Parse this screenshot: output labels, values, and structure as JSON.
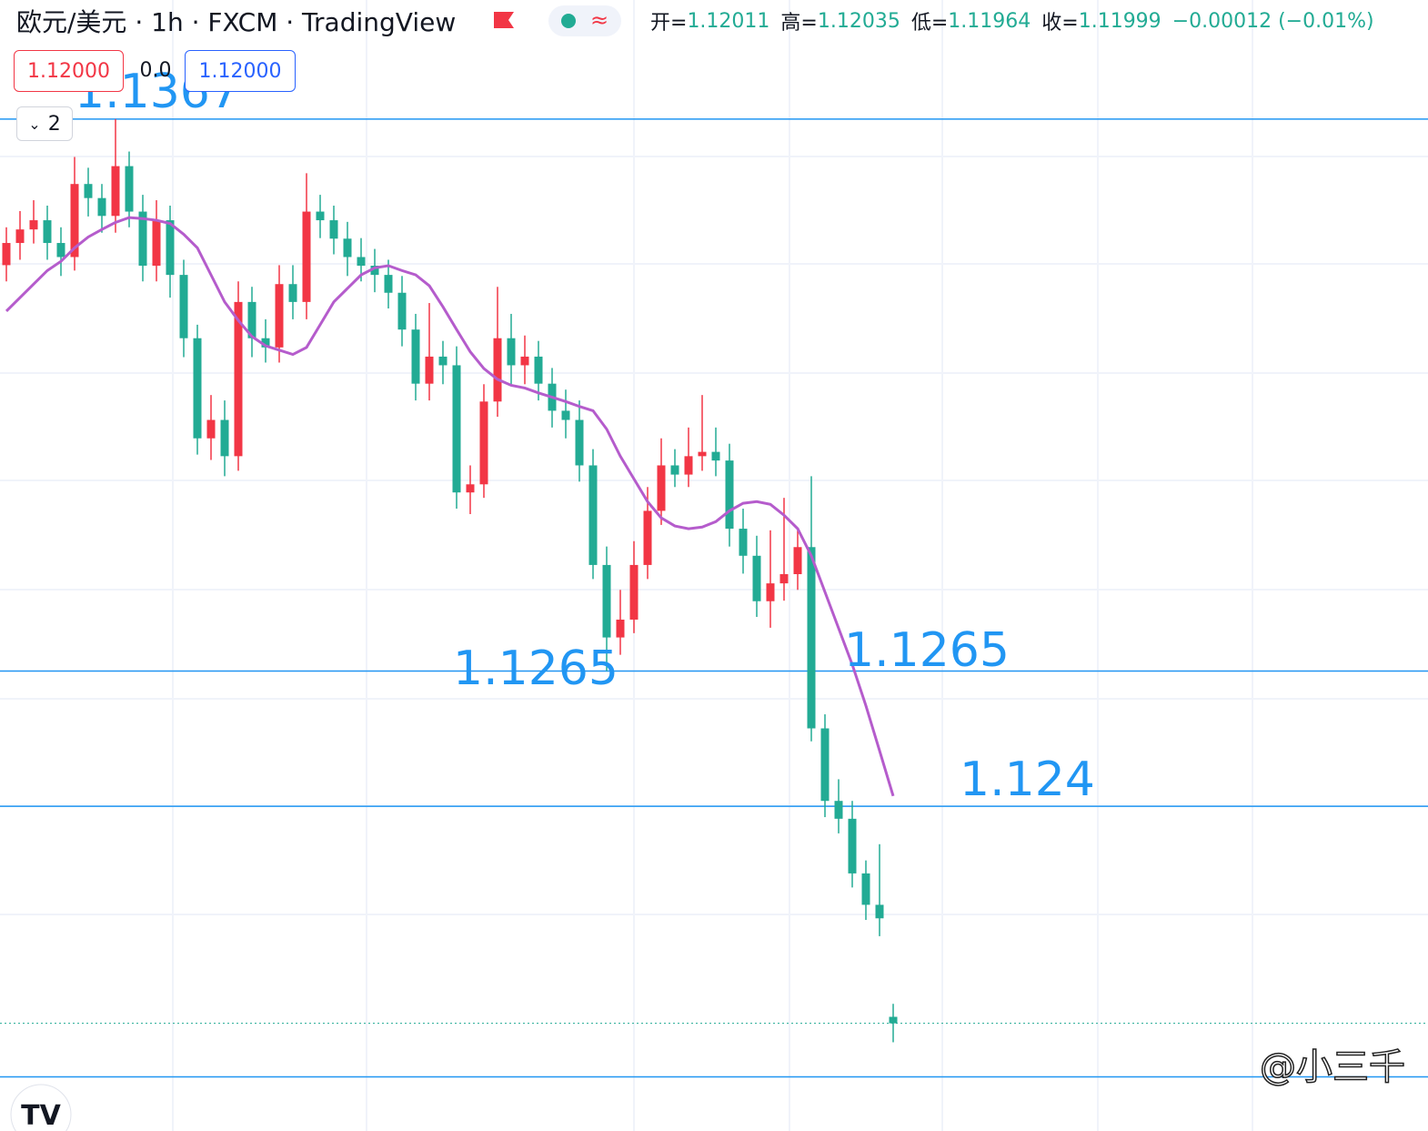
{
  "header": {
    "title": "欧元/美元 · 1h · FXCM · TradingView",
    "ohlc": [
      {
        "label": "开=",
        "value": 1.12011
      },
      {
        "label": "高=",
        "value": 1.12035
      },
      {
        "label": "低=",
        "value": 1.11964
      },
      {
        "label": "收=",
        "value": 1.11999
      }
    ],
    "change": "−0.00012 (−0.01%)"
  },
  "toolbar": {
    "sell_price": "1.12000",
    "spread": "0.0",
    "buy_price": "1.12000",
    "count": "2"
  },
  "watermark": "@小三千",
  "chart_data": {
    "type": "candlestick",
    "up_color": "#f23645",
    "down_color": "#22ab94",
    "ylim": [
      1.118,
      1.1389
    ],
    "open": [
      1.134,
      1.13441,
      1.13466,
      1.13483,
      1.13441,
      1.13415,
      1.1355,
      1.13524,
      1.13491,
      1.13583,
      1.13499,
      1.13399,
      1.13483,
      1.13382,
      1.13265,
      1.1308,
      1.13114,
      1.13047,
      1.13332,
      1.13265,
      1.13248,
      1.13365,
      1.13332,
      1.13499,
      1.13483,
      1.13449,
      1.13415,
      1.13399,
      1.13382,
      1.13349,
      1.13281,
      1.13181,
      1.13231,
      1.13215,
      1.1298,
      1.12995,
      1.13148,
      1.13265,
      1.13215,
      1.13231,
      1.13181,
      1.13131,
      1.13114,
      1.1303,
      1.12846,
      1.12712,
      1.12745,
      1.12846,
      1.12946,
      1.1303,
      1.13013,
      1.13047,
      1.13055,
      1.13039,
      1.12913,
      1.12863,
      1.12779,
      1.12812,
      1.12829,
      1.12879,
      1.12544,
      1.1241,
      1.12377,
      1.12276,
      1.12218,
      1.12011
    ],
    "high": [
      1.1347,
      1.135,
      1.1352,
      1.1351,
      1.1347,
      1.136,
      1.1358,
      1.1355,
      1.1367,
      1.1361,
      1.1353,
      1.1352,
      1.1351,
      1.1341,
      1.1329,
      1.1316,
      1.1315,
      1.1337,
      1.1336,
      1.133,
      1.134,
      1.134,
      1.1357,
      1.1353,
      1.1351,
      1.1348,
      1.1345,
      1.1343,
      1.1341,
      1.1338,
      1.1331,
      1.1333,
      1.1326,
      1.1325,
      1.1303,
      1.1318,
      1.1336,
      1.1331,
      1.1327,
      1.1326,
      1.1321,
      1.1317,
      1.1315,
      1.1306,
      1.1288,
      1.128,
      1.1289,
      1.1299,
      1.1308,
      1.1306,
      1.131,
      1.1316,
      1.131,
      1.1307,
      1.1295,
      1.129,
      1.1291,
      1.1297,
      1.1291,
      1.1301,
      1.1257,
      1.1245,
      1.1241,
      1.123,
      1.1233,
      1.12035
    ],
    "low": [
      1.1337,
      1.1341,
      1.1344,
      1.1341,
      1.1338,
      1.1339,
      1.1349,
      1.1346,
      1.1346,
      1.1347,
      1.1337,
      1.1337,
      1.1334,
      1.1323,
      1.1305,
      1.1304,
      1.1301,
      1.1302,
      1.1323,
      1.1322,
      1.1322,
      1.133,
      1.133,
      1.1345,
      1.1342,
      1.1338,
      1.1337,
      1.1335,
      1.1332,
      1.1325,
      1.1315,
      1.1315,
      1.1318,
      1.1295,
      1.1294,
      1.1297,
      1.1312,
      1.1318,
      1.1318,
      1.1315,
      1.131,
      1.1308,
      1.13,
      1.1282,
      1.1265,
      1.1268,
      1.1272,
      1.1282,
      1.1292,
      1.1299,
      1.1299,
      1.1302,
      1.1301,
      1.1288,
      1.1283,
      1.1275,
      1.1273,
      1.1278,
      1.128,
      1.1252,
      1.1238,
      1.1235,
      1.1225,
      1.1219,
      1.1216,
      1.11964
    ],
    "close": [
      1.13441,
      1.13466,
      1.13483,
      1.13441,
      1.13415,
      1.1355,
      1.13524,
      1.13491,
      1.13583,
      1.13499,
      1.13399,
      1.13483,
      1.13382,
      1.13265,
      1.1308,
      1.13114,
      1.13047,
      1.13332,
      1.13265,
      1.13248,
      1.13365,
      1.13332,
      1.13499,
      1.13483,
      1.13449,
      1.13415,
      1.13399,
      1.13382,
      1.13349,
      1.13281,
      1.13181,
      1.13231,
      1.13215,
      1.1298,
      1.12995,
      1.13148,
      1.13265,
      1.13215,
      1.13231,
      1.13181,
      1.13131,
      1.13114,
      1.1303,
      1.12846,
      1.12712,
      1.12745,
      1.12846,
      1.12946,
      1.1303,
      1.13013,
      1.13047,
      1.13055,
      1.13039,
      1.12913,
      1.12863,
      1.12779,
      1.12812,
      1.12829,
      1.12879,
      1.12544,
      1.1241,
      1.12377,
      1.12276,
      1.12218,
      1.12193,
      1.11999
    ],
    "ma": {
      "color": "#b55ccc",
      "values": [
        1.13315,
        1.1334,
        1.13365,
        1.1339,
        1.13407,
        1.13432,
        1.13452,
        1.13466,
        1.13479,
        1.13488,
        1.13486,
        1.13483,
        1.13477,
        1.13457,
        1.13432,
        1.13382,
        1.13332,
        1.13298,
        1.13268,
        1.13251,
        1.13243,
        1.13235,
        1.13248,
        1.1329,
        1.13332,
        1.13357,
        1.13382,
        1.13395,
        1.13399,
        1.1339,
        1.13382,
        1.13362,
        1.13323,
        1.13281,
        1.1324,
        1.13209,
        1.13189,
        1.13178,
        1.13173,
        1.13164,
        1.13156,
        1.13148,
        1.13139,
        1.13131,
        1.13097,
        1.13047,
        1.13005,
        1.12963,
        1.12933,
        1.12918,
        1.12913,
        1.12916,
        1.12926,
        1.12946,
        1.1296,
        1.12963,
        1.12958,
        1.12938,
        1.12913,
        1.12863,
        1.12796,
        1.12729,
        1.12662,
        1.12586,
        1.12503,
        1.12419
      ]
    },
    "price_lines": {
      "color": "#2196f3",
      "values": [
        1.1367,
        1.1265,
        1.124,
        1.119
      ]
    }
  }
}
